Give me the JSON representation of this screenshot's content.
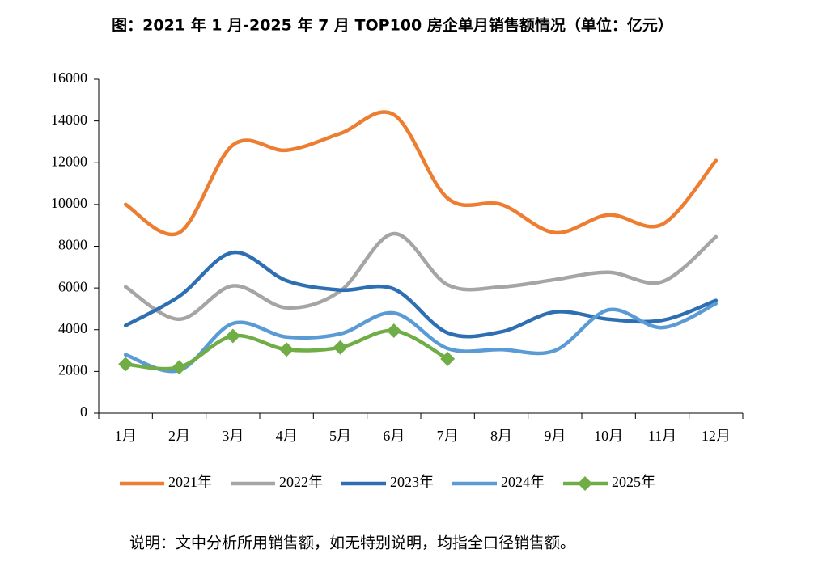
{
  "chart_data": {
    "type": "line",
    "title": "图：2021 年 1 月-2025 年 7 月 TOP100 房企单月销售额情况（单位：亿元）",
    "note": "说明：文中分析所用销售额，如无特别说明，均指全口径销售额。",
    "categories": [
      "1月",
      "2月",
      "3月",
      "4月",
      "5月",
      "6月",
      "7月",
      "8月",
      "9月",
      "10月",
      "11月",
      "12月"
    ],
    "series": [
      {
        "name": "2021年",
        "color": "#ed7d31",
        "marker": "none",
        "values": [
          10000,
          8650,
          12850,
          12600,
          13400,
          14300,
          10300,
          10000,
          8650,
          9500,
          9050,
          12100
        ]
      },
      {
        "name": "2022年",
        "color": "#a5a5a5",
        "marker": "none",
        "values": [
          6050,
          4500,
          6100,
          5050,
          5850,
          8600,
          6150,
          6050,
          6400,
          6750,
          6300,
          8450
        ]
      },
      {
        "name": "2023年",
        "color": "#2e6fb4",
        "marker": "none",
        "values": [
          4200,
          5600,
          7700,
          6350,
          5900,
          5950,
          3850,
          3900,
          4850,
          4500,
          4450,
          5400
        ]
      },
      {
        "name": "2024年",
        "color": "#5b9bd5",
        "marker": "none",
        "values": [
          2800,
          2050,
          4300,
          3650,
          3800,
          4800,
          3100,
          3050,
          3000,
          4950,
          4100,
          5250
        ]
      },
      {
        "name": "2025年",
        "color": "#70ad47",
        "marker": "diamond",
        "values": [
          2350,
          2200,
          3700,
          3050,
          3150,
          3950,
          2600,
          null,
          null,
          null,
          null,
          null
        ]
      }
    ],
    "ylim": [
      0,
      16000
    ],
    "yticks": [
      0,
      2000,
      4000,
      6000,
      8000,
      10000,
      12000,
      14000,
      16000
    ],
    "smooth": true,
    "grid": false,
    "legend": "bottom"
  }
}
